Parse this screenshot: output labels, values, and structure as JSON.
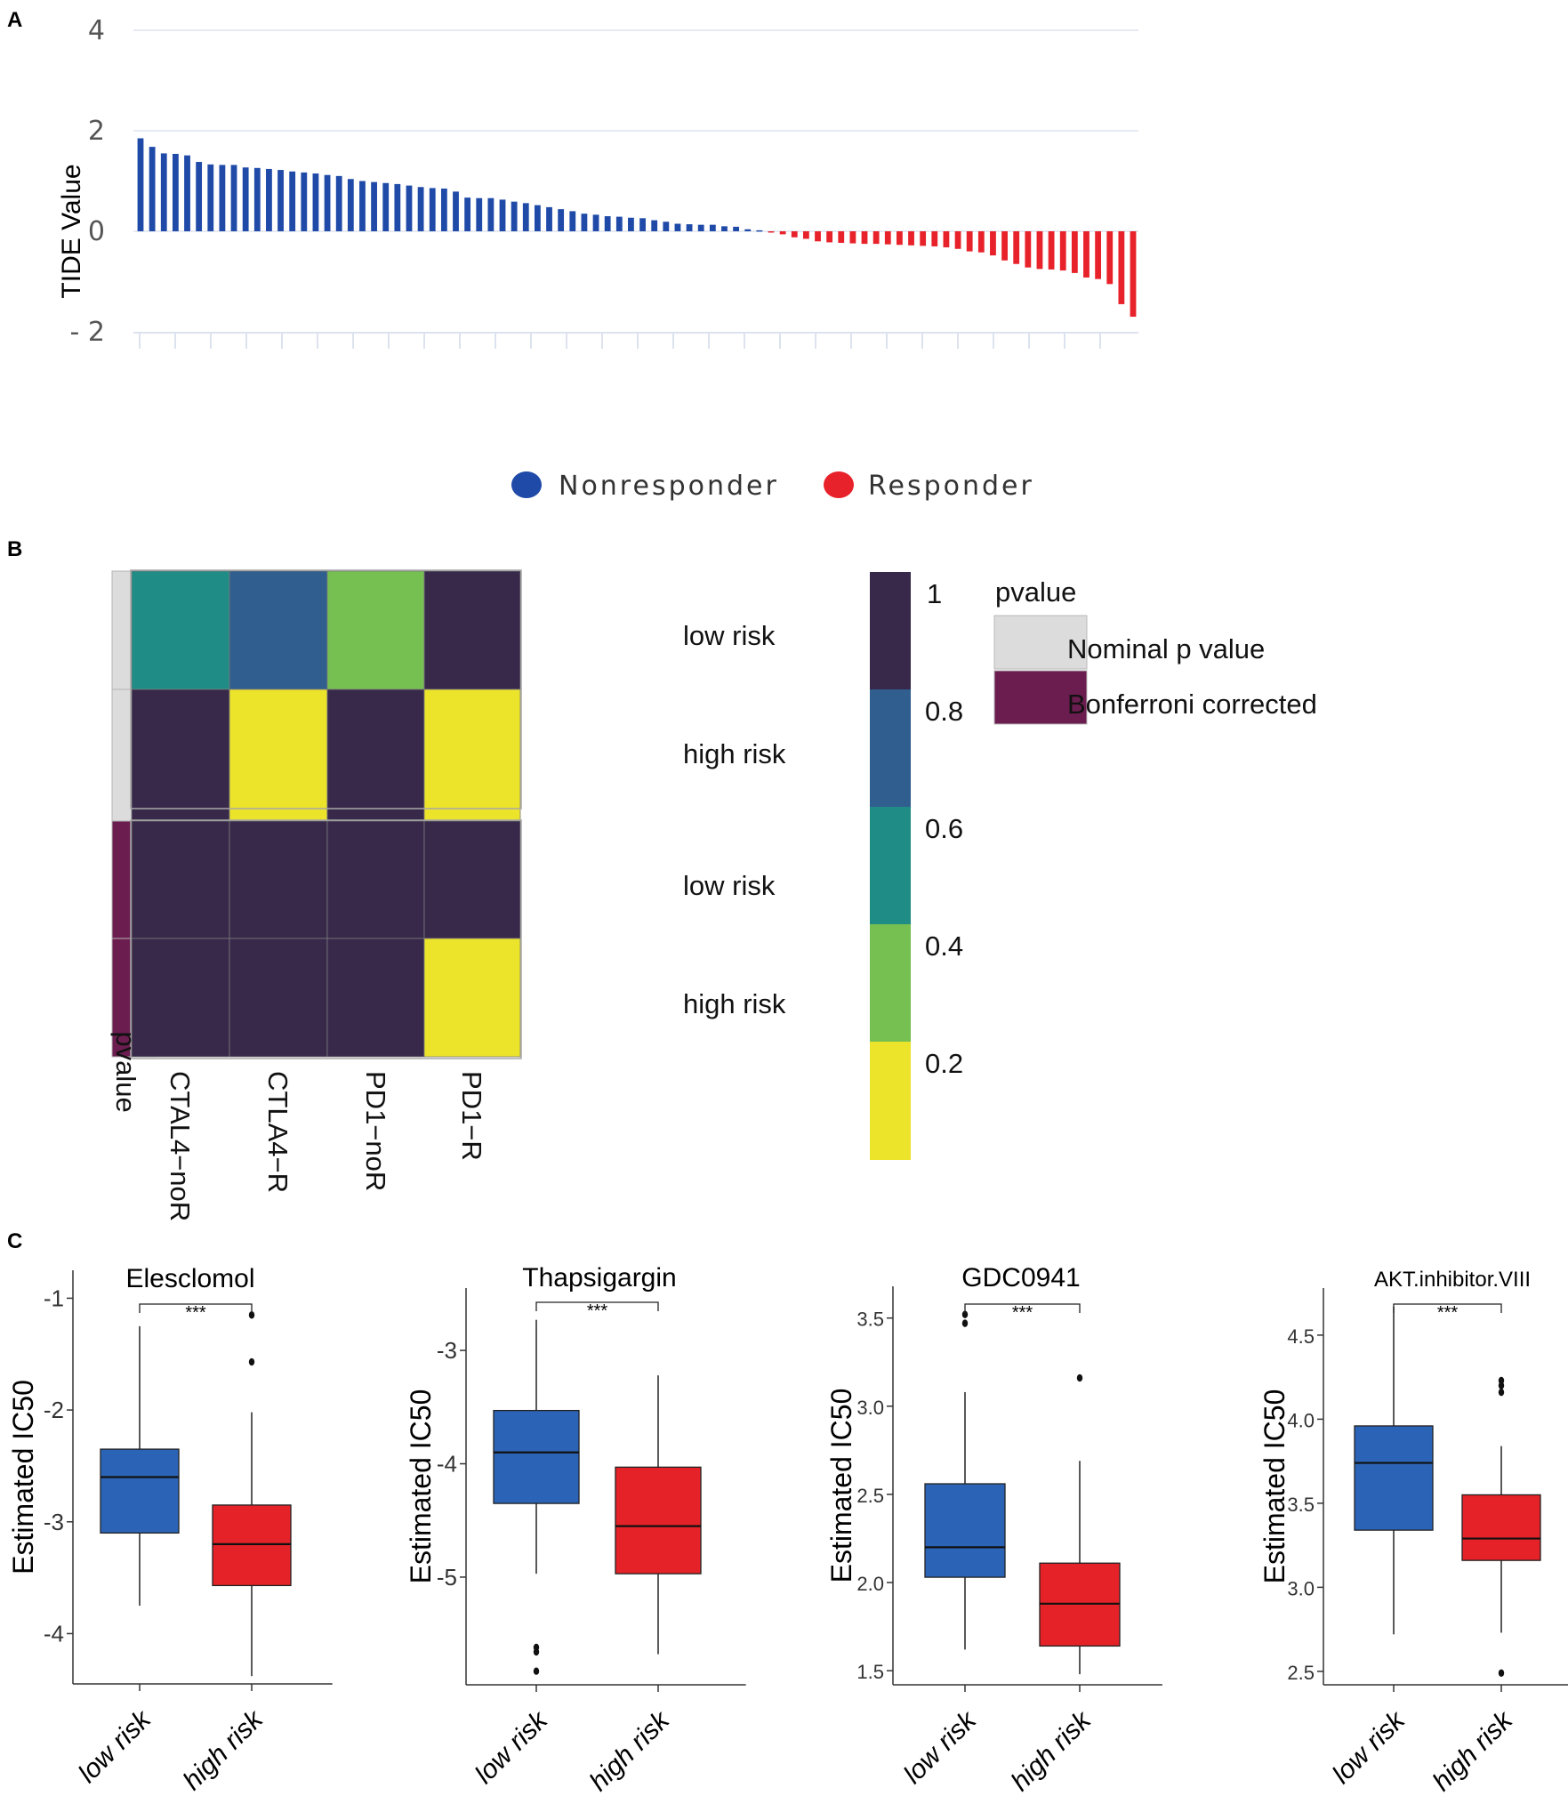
{
  "panels": {
    "a": "A",
    "b": "B",
    "c": "C"
  },
  "colors": {
    "nonresponder": "#1f4aa8",
    "responder": "#e8222a",
    "grid": "#dde3ee",
    "box_low": "#2b64b6",
    "box_high": "#e42227",
    "nominal": "#dcdcdc",
    "bonferroni": "#6b1d50"
  },
  "chart_data": [
    {
      "id": "tide",
      "type": "bar",
      "title": "",
      "ylabel": "TIDE Value",
      "ylim": [
        -2,
        4
      ],
      "yticks": [
        "4",
        "2",
        "0",
        "- 2"
      ],
      "legend": {
        "position": "bottom",
        "items": [
          "Nonresponder",
          "Responder"
        ]
      },
      "series": [
        {
          "name": "Nonresponder",
          "values": [
            1.85,
            1.68,
            1.55,
            1.54,
            1.51,
            1.38,
            1.33,
            1.32,
            1.32,
            1.27,
            1.26,
            1.24,
            1.22,
            1.19,
            1.17,
            1.15,
            1.12,
            1.1,
            1.04,
            1.0,
            0.98,
            0.96,
            0.94,
            0.91,
            0.88,
            0.86,
            0.85,
            0.79,
            0.67,
            0.66,
            0.66,
            0.63,
            0.59,
            0.56,
            0.52,
            0.48,
            0.44,
            0.4,
            0.35,
            0.33,
            0.3,
            0.29,
            0.27,
            0.26,
            0.22,
            0.19,
            0.15,
            0.14,
            0.13,
            0.13,
            0.1,
            0.09,
            0.04,
            0.02
          ]
        },
        {
          "name": "Responder",
          "values": [
            -0.02,
            -0.06,
            -0.12,
            -0.15,
            -0.2,
            -0.22,
            -0.23,
            -0.24,
            -0.25,
            -0.25,
            -0.26,
            -0.27,
            -0.28,
            -0.29,
            -0.3,
            -0.32,
            -0.35,
            -0.4,
            -0.42,
            -0.48,
            -0.58,
            -0.65,
            -0.72,
            -0.75,
            -0.76,
            -0.78,
            -0.83,
            -0.92,
            -0.95,
            -1.05,
            -1.45,
            -1.7
          ]
        }
      ]
    },
    {
      "id": "heatmap",
      "type": "heatmap",
      "columns": [
        "CTAL4−noR",
        "CTLA4−R",
        "PD1−noR",
        "PD1−R"
      ],
      "row_labels": [
        "low risk",
        "high risk",
        "low risk",
        "high risk"
      ],
      "row_annotation_label": "pvalue",
      "row_groups": [
        "Nominal p value",
        "Nominal p value",
        "Bonferroni corrected",
        "Bonferroni corrected"
      ],
      "values": [
        [
          0.5,
          0.7,
          0.35,
          1.0
        ],
        [
          1.0,
          0.08,
          1.0,
          0.08
        ],
        [
          1.0,
          1.0,
          1.0,
          1.0
        ],
        [
          1.0,
          1.0,
          1.0,
          0.08
        ]
      ],
      "colorbar": {
        "ticks": [
          "1",
          "0.8",
          "0.6",
          "0.4",
          "0.2"
        ],
        "range": [
          0,
          1
        ]
      },
      "legend": {
        "title": "pvalue",
        "items": [
          "Nominal p value",
          "Bonferroni corrected"
        ]
      }
    },
    {
      "id": "elesclomol",
      "type": "box",
      "title": "Elesclomol",
      "ylabel": "Estimated IC50",
      "categories": [
        "low risk",
        "high risk"
      ],
      "ylim": [
        -4.45,
        -0.75
      ],
      "yticks": [
        -1,
        -2,
        -3,
        -4
      ],
      "ytick_labels": [
        "-1",
        "-2",
        "-3",
        "-4"
      ],
      "significance": "***",
      "boxes": [
        {
          "q1": -3.1,
          "median": -2.6,
          "q3": -2.35,
          "wlo": -3.75,
          "whi": -1.25,
          "outliers": []
        },
        {
          "q1": -3.57,
          "median": -3.2,
          "q3": -2.85,
          "wlo": -4.38,
          "whi": -2.02,
          "outliers": [
            -1.15,
            -1.57
          ]
        }
      ]
    },
    {
      "id": "thapsigargin",
      "type": "box",
      "title": "Thapsigargin",
      "ylabel": "Estimated IC50",
      "categories": [
        "low risk",
        "high risk"
      ],
      "ylim": [
        -5.95,
        -2.45
      ],
      "yticks": [
        -3,
        -4,
        -5
      ],
      "ytick_labels": [
        "-3",
        "-4",
        "-5"
      ],
      "significance": "***",
      "boxes": [
        {
          "q1": -4.35,
          "median": -3.9,
          "q3": -3.53,
          "wlo": -4.97,
          "whi": -2.73,
          "outliers": [
            -5.62,
            -5.66,
            -5.83
          ]
        },
        {
          "q1": -4.97,
          "median": -4.55,
          "q3": -4.03,
          "wlo": -5.68,
          "whi": -3.22,
          "outliers": []
        }
      ]
    },
    {
      "id": "gdc0941",
      "type": "box",
      "title": "GDC0941",
      "ylabel": "Estimated IC50",
      "categories": [
        "low risk",
        "high risk"
      ],
      "ylim": [
        1.42,
        3.68
      ],
      "yticks": [
        3.5,
        3.0,
        2.5,
        2.0,
        1.5
      ],
      "ytick_labels": [
        "3.5",
        "3.0",
        "2.5",
        "2.0",
        "1.5"
      ],
      "significance": "***",
      "boxes": [
        {
          "q1": 2.03,
          "median": 2.2,
          "q3": 2.56,
          "wlo": 1.62,
          "whi": 3.08,
          "outliers": [
            3.47,
            3.52
          ]
        },
        {
          "q1": 1.64,
          "median": 1.88,
          "q3": 2.11,
          "wlo": 1.48,
          "whi": 2.69,
          "outliers": [
            3.16
          ]
        }
      ]
    },
    {
      "id": "akt",
      "type": "box",
      "title": "AKT.inhibitor.VIII",
      "ylabel": "Estimated IC50",
      "categories": [
        "low risk",
        "high risk"
      ],
      "ylim": [
        2.42,
        4.78
      ],
      "yticks": [
        4.5,
        4.0,
        3.5,
        3.0,
        2.5
      ],
      "ytick_labels": [
        "4.5",
        "4.0",
        "3.5",
        "3.0",
        "2.5"
      ],
      "significance": "***",
      "boxes": [
        {
          "q1": 3.34,
          "median": 3.74,
          "q3": 3.96,
          "wlo": 2.72,
          "whi": 4.67,
          "outliers": []
        },
        {
          "q1": 3.16,
          "median": 3.29,
          "q3": 3.55,
          "wlo": 2.73,
          "whi": 3.84,
          "outliers": [
            4.16,
            4.2,
            4.23,
            2.49
          ]
        }
      ]
    }
  ]
}
